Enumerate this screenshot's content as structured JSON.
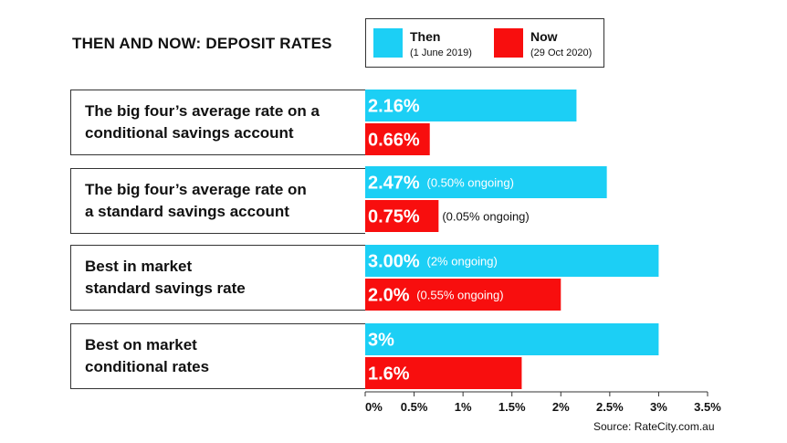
{
  "chart_data": {
    "type": "bar",
    "orientation": "horizontal",
    "title": "THEN AND NOW: DEPOSIT RATES",
    "categories": [
      "The big four’s average rate on a conditional savings account",
      "The big four’s average rate on a standard savings account",
      "Best in market standard savings rate",
      "Best on market conditional rates"
    ],
    "category_lines": [
      [
        "The big four’s average rate on a",
        "conditional savings account"
      ],
      [
        "The big four’s average rate on",
        "a standard savings account"
      ],
      [
        "Best in market",
        "standard savings rate"
      ],
      [
        "Best on market",
        "conditional rates"
      ]
    ],
    "series": [
      {
        "name": "Then",
        "subtitle": "(1 June 2019)",
        "color": "#1ccff5",
        "values": [
          2.16,
          2.47,
          3.0,
          3.0
        ],
        "labels": [
          "2.16%",
          "2.47%",
          "3.00%",
          "3%"
        ],
        "notes": [
          "",
          "(0.50% ongoing)",
          "(2% ongoing)",
          ""
        ]
      },
      {
        "name": "Now",
        "subtitle": "(29 Oct 2020)",
        "color": "#f80e0e",
        "values": [
          0.66,
          0.75,
          2.0,
          1.6
        ],
        "labels": [
          "0.66%",
          "0.75%",
          "2.0%",
          "1.6%"
        ],
        "notes": [
          "",
          "(0.05% ongoing)",
          "(0.55% ongoing)",
          ""
        ]
      }
    ],
    "xlim": [
      0,
      3.5
    ],
    "xticks": [
      0,
      0.5,
      1,
      1.5,
      2,
      2.5,
      3,
      3.5
    ],
    "xtick_labels": [
      "0%",
      "0.5%",
      "1%",
      "1.5%",
      "2%",
      "2.5%",
      "3%",
      "3.5%"
    ],
    "grid": false,
    "legend_position": "top"
  },
  "source": "Source: RateCity.com.au"
}
